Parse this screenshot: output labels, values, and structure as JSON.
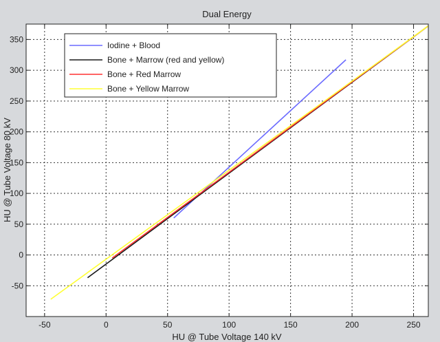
{
  "chart_data": {
    "type": "line",
    "title": "Dual Energy",
    "xlabel": "HU @ Tube Voltage 140 kV",
    "ylabel": "HU @ Tube Voltage 80 kV",
    "xlim": [
      -65,
      262
    ],
    "ylim": [
      -100,
      375
    ],
    "xticks": [
      -50,
      0,
      50,
      100,
      150,
      200,
      250
    ],
    "yticks": [
      -50,
      0,
      50,
      100,
      150,
      200,
      250,
      300,
      350
    ],
    "grid": true,
    "legend_position": "top-left",
    "series": [
      {
        "name": "Iodine + Blood",
        "color": "#6b6bff",
        "x": [
          55,
          195
        ],
        "y": [
          60,
          317
        ]
      },
      {
        "name": "Bone + Marrow (red and yellow)",
        "color": "#1a1a1a",
        "x": [
          -15,
          262
        ],
        "y": [
          -37,
          372
        ]
      },
      {
        "name": "Bone + Red Marrow",
        "color": "#ff3030",
        "x": [
          5,
          262
        ],
        "y": [
          -5,
          372
        ]
      },
      {
        "name": "Bone + Yellow Marrow",
        "color": "#ffff33",
        "x": [
          -45,
          262
        ],
        "y": [
          -72,
          372
        ]
      }
    ]
  }
}
